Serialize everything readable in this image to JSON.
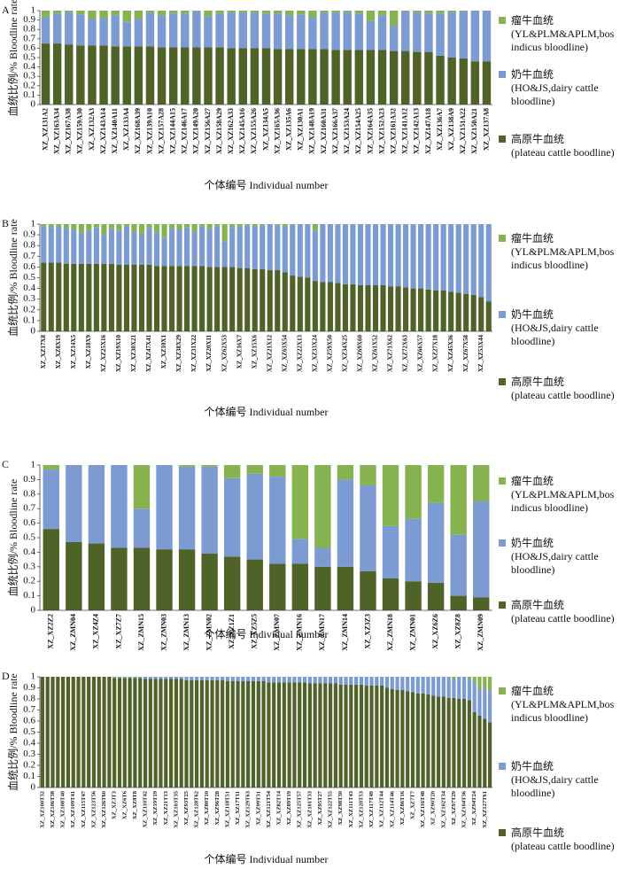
{
  "chart_data": [
    {
      "type": "bar",
      "stacked": true,
      "panel": "A",
      "y_label": "血统比例/% Bloodline rate",
      "x_label": "个体编号 Individual number",
      "categories": [
        "XZ_XZ131A2",
        "XZ_XZ163A34",
        "XZ_XZ167A38",
        "XZ_XZ159A30",
        "XZ_XZ132A3",
        "XZ_XZ143A14",
        "XZ_XZ140A11",
        "XZ_XZ133A4",
        "XZ_XZ168A39",
        "XZ_XZ139A10",
        "XZ_XZ157A28",
        "XZ_XZ144A15",
        "XZ_XZ146A17",
        "XZ_XZ149A20",
        "XZ_XZ156A27",
        "XZ_XZ158A29",
        "XZ_XZ162A33",
        "XZ_XZ145A16",
        "XZ_XZ155A26",
        "XZ_XZ134A5",
        "XZ_XZ165A36",
        "XZ_XZ135A6",
        "XZ_XZ130A1",
        "XZ_XZ148A19",
        "XZ_XZ160A31",
        "XZ_XZ166A37",
        "XZ_XZ153A24",
        "XZ_XZ154A25",
        "XZ_XZ164A35",
        "XZ_XZ152A23",
        "XZ_XZ161A32",
        "XZ_XZ141A12",
        "XZ_XZ142A13",
        "XZ_XZ147A18",
        "XZ_XZ136A7",
        "XZ_XZ138A9",
        "XZ_XZ151A22",
        "XZ_XZ150A21",
        "XZ_XZ137A8"
      ],
      "series": [
        {
          "name": "高原牛血统",
          "description": "(plateau cattle boodline)",
          "color": "#4f6228",
          "values": [
            0.65,
            0.65,
            0.64,
            0.63,
            0.63,
            0.63,
            0.62,
            0.62,
            0.62,
            0.62,
            0.61,
            0.61,
            0.61,
            0.61,
            0.61,
            0.61,
            0.6,
            0.6,
            0.6,
            0.6,
            0.59,
            0.59,
            0.59,
            0.59,
            0.59,
            0.58,
            0.58,
            0.58,
            0.58,
            0.58,
            0.57,
            0.57,
            0.56,
            0.56,
            0.52,
            0.5,
            0.49,
            0.46,
            0.46
          ]
        },
        {
          "name": "奶牛血统",
          "description": "(HO&JS,dairy cattle bloodline)",
          "color": "#7b9bd2",
          "values": [
            0.28,
            0.32,
            0.34,
            0.33,
            0.28,
            0.29,
            0.33,
            0.26,
            0.29,
            0.36,
            0.34,
            0.36,
            0.36,
            0.38,
            0.33,
            0.36,
            0.38,
            0.38,
            0.38,
            0.37,
            0.38,
            0.36,
            0.37,
            0.34,
            0.39,
            0.4,
            0.4,
            0.39,
            0.31,
            0.37,
            0.27,
            0.42,
            0.42,
            0.41,
            0.45,
            0.48,
            0.5,
            0.54,
            0.54
          ]
        },
        {
          "name": "瘤牛血统",
          "description": "(YL&PLM&APLM,bos indicus bloodline)",
          "color": "#86b350",
          "values": [
            0.07,
            0.03,
            0.02,
            0.04,
            0.09,
            0.08,
            0.05,
            0.12,
            0.09,
            0.02,
            0.05,
            0.03,
            0.03,
            0.01,
            0.06,
            0.03,
            0.02,
            0.02,
            0.02,
            0.03,
            0.03,
            0.05,
            0.04,
            0.07,
            0.02,
            0.02,
            0.02,
            0.03,
            0.11,
            0.05,
            0.16,
            0.01,
            0.02,
            0.03,
            0.03,
            0.02,
            0.01,
            0,
            0
          ]
        }
      ],
      "ylim": [
        0,
        1
      ],
      "yticks": [
        0,
        0.1,
        0.2,
        0.3,
        0.4,
        0.5,
        0.6,
        0.7,
        0.8,
        0.9,
        1
      ]
    },
    {
      "type": "bar",
      "stacked": true,
      "panel": "B",
      "y_label": "血统比例/% Bloodline rate",
      "x_label": "个体编号 Individual number",
      "categories": [
        "XZ_XZ17X8",
        null,
        "XZ_XZ8X19",
        null,
        "XZ_XZ14X5",
        null,
        "XZ_XZ18X9",
        null,
        "XZ_XZ25X16",
        null,
        "XZ_XZ19X10",
        null,
        "XZ_XZ30X21",
        null,
        "XZ_XZ47X41",
        null,
        "XZ_XZ10X1",
        null,
        "XZ_XZ38X29",
        null,
        "XZ_XZ31X22",
        null,
        "XZ_XZ20X11",
        null,
        "XZ_XZ62X53",
        null,
        "XZ_XZ16X7",
        null,
        "XZ_XZ15X6",
        null,
        "XZ_XZ21X12",
        null,
        "XZ_XZ63X54",
        null,
        "XZ_XZ22X13",
        null,
        "XZ_XZ33X24",
        null,
        "XZ_XZ59X50",
        null,
        "XZ_XZ34X25",
        null,
        "XZ_XZ69X60",
        null,
        "XZ_XZ61X52",
        null,
        "XZ_XZ71X62",
        null,
        "XZ_XZ72X63",
        null,
        "XZ_XZ66X57",
        null,
        "XZ_XZ27X18",
        null,
        "XZ_XZ45X36",
        null,
        "XZ_XZ67X58",
        null,
        "XZ_XZ53X44",
        null
      ],
      "series": [
        {
          "name": "高原牛血统",
          "description": "(plateau cattle boodline)",
          "color": "#4f6228",
          "values": [
            0.64,
            0.64,
            0.64,
            0.63,
            0.63,
            0.63,
            0.63,
            0.63,
            0.63,
            0.63,
            0.62,
            0.62,
            0.62,
            0.62,
            0.62,
            0.61,
            0.61,
            0.61,
            0.61,
            0.61,
            0.61,
            0.61,
            0.6,
            0.6,
            0.6,
            0.6,
            0.59,
            0.59,
            0.58,
            0.58,
            0.57,
            0.57,
            0.55,
            0.52,
            0.51,
            0.5,
            0.47,
            0.46,
            0.46,
            0.45,
            0.44,
            0.44,
            0.43,
            0.43,
            0.43,
            0.43,
            0.42,
            0.42,
            0.41,
            0.4,
            0.4,
            0.39,
            0.38,
            0.38,
            0.37,
            0.36,
            0.35,
            0.34,
            0.32,
            0.28
          ]
        },
        {
          "name": "奶牛血统",
          "description": "(HO&JS,dairy cattle bloodline)",
          "color": "#7b9bd2",
          "values": [
            0.34,
            0.33,
            0.34,
            0.33,
            0.32,
            0.29,
            0.31,
            0.34,
            0.27,
            0.33,
            0.32,
            0.36,
            0.31,
            0.29,
            0.35,
            0.31,
            0.26,
            0.35,
            0.34,
            0.36,
            0.32,
            0.37,
            0.36,
            0.38,
            0.24,
            0.37,
            0.39,
            0.4,
            0.4,
            0.41,
            0.43,
            0.42,
            0.43,
            0.48,
            0.49,
            0.5,
            0.47,
            0.54,
            0.54,
            0.55,
            0.56,
            0.56,
            0.57,
            0.57,
            0.57,
            0.57,
            0.58,
            0.58,
            0.59,
            0.6,
            0.6,
            0.61,
            0.62,
            0.62,
            0.63,
            0.64,
            0.65,
            0.66,
            0.68,
            0.72
          ]
        },
        {
          "name": "瘤牛血统",
          "description": "(YL&PLM&APLM,bos indicus bloodline)",
          "color": "#86b350",
          "values": [
            0.02,
            0.03,
            0.02,
            0.04,
            0.05,
            0.08,
            0.06,
            0.03,
            0.1,
            0.04,
            0.06,
            0.02,
            0.07,
            0.09,
            0.03,
            0.08,
            0.13,
            0.04,
            0.05,
            0.03,
            0.07,
            0.02,
            0.04,
            0.02,
            0.16,
            0.03,
            0.02,
            0.01,
            0.02,
            0.01,
            0,
            0.01,
            0.02,
            0,
            0,
            0,
            0.06,
            0,
            0,
            0,
            0,
            0,
            0,
            0,
            0,
            0,
            0,
            0,
            0,
            0,
            0,
            0,
            0,
            0,
            0,
            0,
            0,
            0,
            0,
            0
          ]
        }
      ],
      "ylim": [
        0,
        1
      ],
      "yticks": [
        0,
        0.1,
        0.2,
        0.3,
        0.4,
        0.5,
        0.6,
        0.7,
        0.8,
        0.9,
        1
      ]
    },
    {
      "type": "bar",
      "stacked": true,
      "panel": "C",
      "y_label": "血统比例/% Bloodline rate",
      "x_label": "个体编号 Individual number",
      "categories": [
        "XZ_XZ2Z2",
        "XZ_ZMN04",
        "XZ_XZ4Z4",
        "XZ_XZ7Z7",
        "XZ_ZMN15",
        "XZ_ZMN03",
        "XZ_ZMN13",
        "XZ_ZMN02",
        "XZ_XZ1Z1",
        "XZ_XZ5Z5",
        "XZ_ZMN07",
        "XZ_ZMN16",
        "XZ_ZMN17",
        "XZ_ZMN14",
        "XZ_XZ3Z3",
        "XZ_ZMN18",
        "XZ_ZMN01",
        "XZ_XZ6Z6",
        "XZ_XZ8Z8",
        "XZ_ZMN09"
      ],
      "series": [
        {
          "name": "高原牛血统",
          "description": "(plateau cattle boodline)",
          "color": "#4f6228",
          "values": [
            0.56,
            0.47,
            0.46,
            0.43,
            0.43,
            0.42,
            0.42,
            0.39,
            0.37,
            0.35,
            0.32,
            0.32,
            0.3,
            0.3,
            0.27,
            0.22,
            0.2,
            0.19,
            0.1,
            0.09
          ]
        },
        {
          "name": "奶牛血统",
          "description": "(HO&JS,dairy cattle bloodline)",
          "color": "#7b9bd2",
          "values": [
            0.41,
            0.53,
            0.54,
            0.57,
            0.27,
            0.58,
            0.57,
            0.6,
            0.54,
            0.59,
            0.6,
            0.17,
            0.13,
            0.6,
            0.59,
            0.36,
            0.43,
            0.55,
            0.42,
            0.66
          ]
        },
        {
          "name": "瘤牛血统",
          "description": "(YL&PLM&APLM,bos indicus bloodline)",
          "color": "#86b350",
          "values": [
            0.03,
            0,
            0,
            0,
            0.3,
            0,
            0.01,
            0.01,
            0.09,
            0.06,
            0.08,
            0.51,
            0.57,
            0.1,
            0.14,
            0.42,
            0.37,
            0.26,
            0.48,
            0.25
          ]
        }
      ],
      "ylim": [
        0,
        1
      ],
      "yticks": [
        0,
        0.1,
        0.2,
        0.3,
        0.4,
        0.5,
        0.6,
        0.7,
        0.8,
        0.9,
        1
      ]
    },
    {
      "type": "bar",
      "stacked": true,
      "panel": "D",
      "y_label": "血统比例/% Bloodline rate",
      "x_label": "个体编号 Individual number",
      "categories": [
        "XZ_XZ100T32",
        null,
        "XZ_XZ106T38",
        null,
        "XZ_XZ108T40",
        null,
        "XZ_XZ109T41",
        null,
        "XZ_XZ115T47",
        null,
        "XZ_XZ123T56",
        null,
        "XZ_XZ126T60",
        null,
        "XZ_XZ3T3",
        null,
        "XZ_XZ6T6",
        null,
        "XZ_XZ8T8",
        null,
        "XZ_XZ110T42",
        null,
        "XZ_XZ19T19",
        null,
        "XZ_XZ21T13",
        null,
        "XZ_XZ103T35",
        null,
        "XZ_XZ93T25",
        null,
        "XZ_XZ128T62",
        null,
        "XZ_XZ80T10",
        null,
        "XZ_XZ96T28",
        null,
        "XZ_XZ118T51",
        null,
        "XZ_XZ17T11",
        null,
        "XZ_XZ129T63",
        null,
        "XZ_XZ99T31",
        null,
        "XZ_XZ121T54",
        null,
        "XZ_XZ82T14",
        null,
        "XZ_XZ89T19",
        null,
        "XZ_XZ125T57",
        null,
        "XZ_XZ101T33",
        null,
        "XZ_XZ95T27",
        null,
        "XZ_XZ122T55",
        null,
        "XZ_XZ98T30",
        null,
        "XZ_XZ111T43",
        null,
        "XZ_XZ120T53",
        null,
        "XZ_XZ117T49",
        null,
        "XZ_XZ112T44",
        null,
        "XZ_XZ114T46",
        null,
        "XZ_XZ86T16",
        null,
        "XZ_XZ7T7",
        null,
        "XZ_XZ116T48",
        null,
        "XZ_XZ90T20",
        null,
        "XZ_XZ102T34",
        null,
        "XZ_XZ97T29",
        null,
        "XZ_XZ104T36",
        null,
        "XZ_XZ94T24",
        null,
        "XZ_XZ127T61",
        null
      ],
      "series": [
        {
          "name": "高原牛血统",
          "description": "(plateau cattle boodline)",
          "color": "#4f6228",
          "values": [
            1,
            1,
            1,
            1,
            1,
            1,
            1,
            1,
            1,
            1,
            1,
            1,
            1,
            1,
            0.99,
            0.99,
            0.99,
            0.99,
            0.99,
            0.99,
            0.98,
            0.98,
            0.98,
            0.98,
            0.98,
            0.98,
            0.98,
            0.98,
            0.97,
            0.97,
            0.97,
            0.97,
            0.97,
            0.97,
            0.97,
            0.97,
            0.96,
            0.96,
            0.96,
            0.96,
            0.96,
            0.96,
            0.96,
            0.96,
            0.95,
            0.95,
            0.95,
            0.95,
            0.95,
            0.95,
            0.95,
            0.95,
            0.94,
            0.94,
            0.94,
            0.94,
            0.94,
            0.94,
            0.93,
            0.93,
            0.93,
            0.93,
            0.93,
            0.92,
            0.92,
            0.92,
            0.92,
            0.9,
            0.89,
            0.88,
            0.88,
            0.87,
            0.86,
            0.85,
            0.85,
            0.84,
            0.83,
            0.82,
            0.82,
            0.81,
            0.81,
            0.8,
            0.8,
            0.79,
            0.68,
            0.65,
            0.62,
            0.59
          ]
        },
        {
          "name": "奶牛血统",
          "description": "(HO&JS,dairy cattle bloodline)",
          "color": "#7b9bd2",
          "values": [
            0,
            0,
            0,
            0,
            0,
            0,
            0,
            0,
            0,
            0,
            0,
            0,
            0,
            0,
            0.01,
            0.01,
            0.01,
            0.01,
            0.01,
            0.01,
            0.02,
            0.02,
            0.02,
            0.02,
            0.02,
            0.02,
            0.02,
            0.02,
            0.03,
            0.03,
            0.03,
            0.03,
            0.03,
            0.03,
            0.03,
            0.03,
            0.04,
            0.04,
            0.04,
            0.04,
            0.04,
            0.04,
            0.04,
            0.04,
            0.05,
            0.05,
            0.05,
            0.05,
            0.05,
            0.05,
            0.05,
            0.05,
            0.06,
            0.06,
            0.06,
            0.06,
            0.06,
            0.06,
            0.07,
            0.07,
            0.07,
            0.07,
            0.07,
            0.08,
            0.08,
            0.08,
            0.08,
            0.1,
            0.11,
            0.12,
            0.12,
            0.13,
            0.14,
            0.15,
            0.15,
            0.16,
            0.17,
            0.18,
            0.18,
            0.19,
            0.17,
            0.2,
            0.2,
            0.19,
            0.27,
            0.23,
            0.28,
            0.28
          ]
        },
        {
          "name": "瘤牛血统",
          "description": "(YL&PLM&APLM,bos indicus bloodline)",
          "color": "#86b350",
          "values": [
            0,
            0,
            0,
            0,
            0,
            0,
            0,
            0,
            0,
            0,
            0,
            0,
            0,
            0,
            0,
            0,
            0,
            0,
            0,
            0,
            0,
            0,
            0,
            0,
            0,
            0,
            0,
            0,
            0,
            0,
            0,
            0,
            0,
            0,
            0,
            0,
            0,
            0,
            0,
            0,
            0,
            0,
            0,
            0,
            0,
            0,
            0,
            0,
            0,
            0,
            0,
            0,
            0,
            0,
            0,
            0,
            0,
            0,
            0,
            0,
            0,
            0,
            0,
            0,
            0,
            0,
            0,
            0,
            0,
            0,
            0,
            0,
            0,
            0,
            0,
            0,
            0,
            0,
            0,
            0,
            0.02,
            0,
            0,
            0.02,
            0.05,
            0.12,
            0.1,
            0.13
          ]
        }
      ],
      "ylim": [
        0,
        1
      ],
      "yticks": [
        0,
        0.1,
        0.2,
        0.3,
        0.4,
        0.5,
        0.6,
        0.7,
        0.8,
        0.9,
        1
      ]
    }
  ]
}
